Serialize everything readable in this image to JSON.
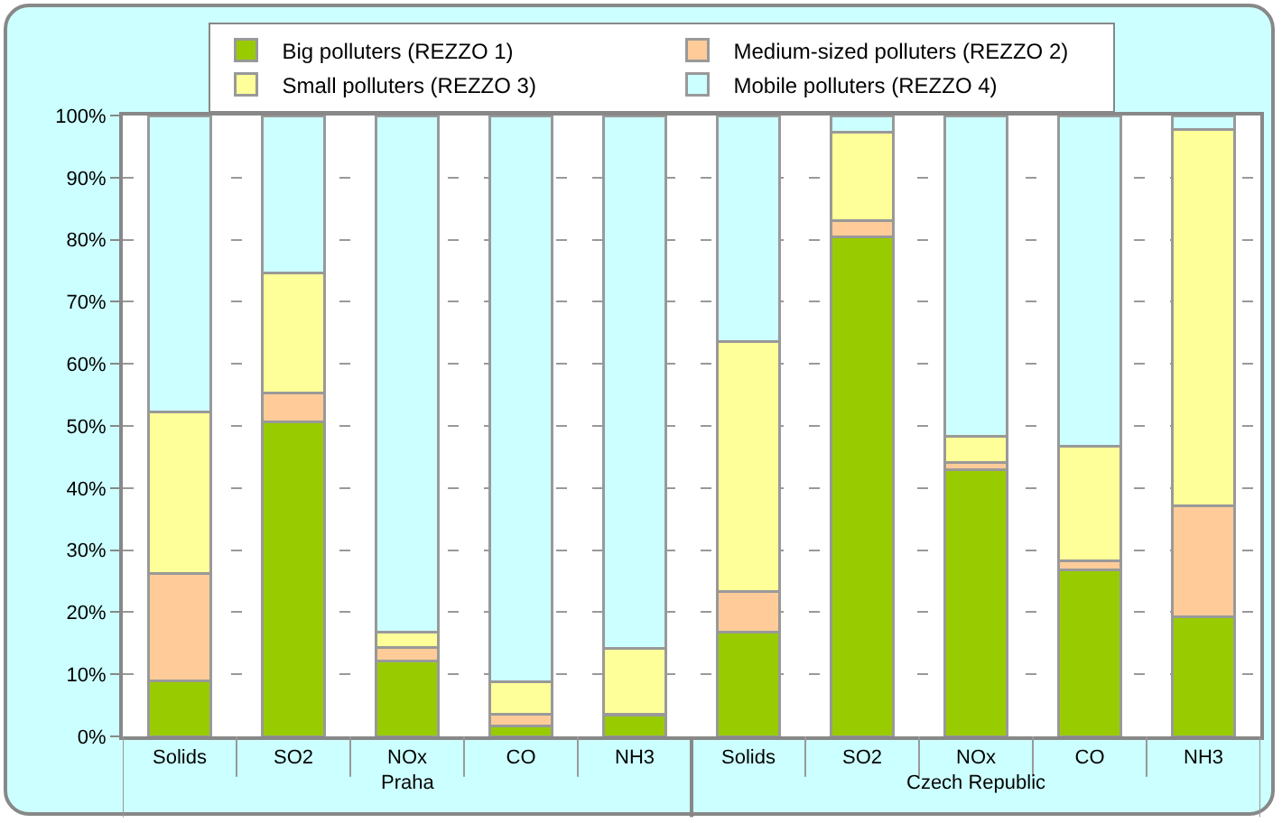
{
  "chart_data": {
    "type": "bar",
    "stacked": true,
    "categories": [
      "Solids",
      "SO2",
      "NOx",
      "CO",
      "NH3",
      "Solids",
      "SO2",
      "NOx",
      "CO",
      "NH3"
    ],
    "series": [
      {
        "name": "Big polluters (REZZO 1)",
        "color": "#99cc00",
        "values": [
          9,
          50.7,
          12.2,
          1.7,
          3.4,
          16.8,
          80.5,
          42.9,
          26.8,
          19.3
        ]
      },
      {
        "name": "Medium-sized polluters (REZZO 2)",
        "color": "#ffcc99",
        "values": [
          17.3,
          4.6,
          2.1,
          1.8,
          0.2,
          6.5,
          2.5,
          1.2,
          1.5,
          17.8
        ]
      },
      {
        "name": "Small polluters (REZZO 3)",
        "color": "#ffff99",
        "values": [
          25.9,
          19.3,
          2.5,
          5.3,
          10.6,
          40.3,
          14.3,
          4.2,
          18.4,
          60.7
        ]
      },
      {
        "name": "Mobile polluters (REZZO 4)",
        "color": "#ccffff",
        "values": [
          47.8,
          25.4,
          83.2,
          91.2,
          85.8,
          36.4,
          2.7,
          51.7,
          53.3,
          2.2
        ]
      }
    ],
    "annotations": [
      "Praha",
      "Czech Republic"
    ],
    "ylim": [
      0,
      100
    ],
    "yticks": [
      {
        "value": 0,
        "label": "0%"
      },
      {
        "value": 10,
        "label": "10%"
      },
      {
        "value": 20,
        "label": "20%"
      },
      {
        "value": 30,
        "label": "30%"
      },
      {
        "value": 40,
        "label": "40%"
      },
      {
        "value": 50,
        "label": "50%"
      },
      {
        "value": 60,
        "label": "60%"
      },
      {
        "value": 70,
        "label": "70%"
      },
      {
        "value": 80,
        "label": "80%"
      },
      {
        "value": 90,
        "label": "90%"
      },
      {
        "value": 100,
        "label": "100%"
      }
    ],
    "grid": "y",
    "legend": "top"
  }
}
